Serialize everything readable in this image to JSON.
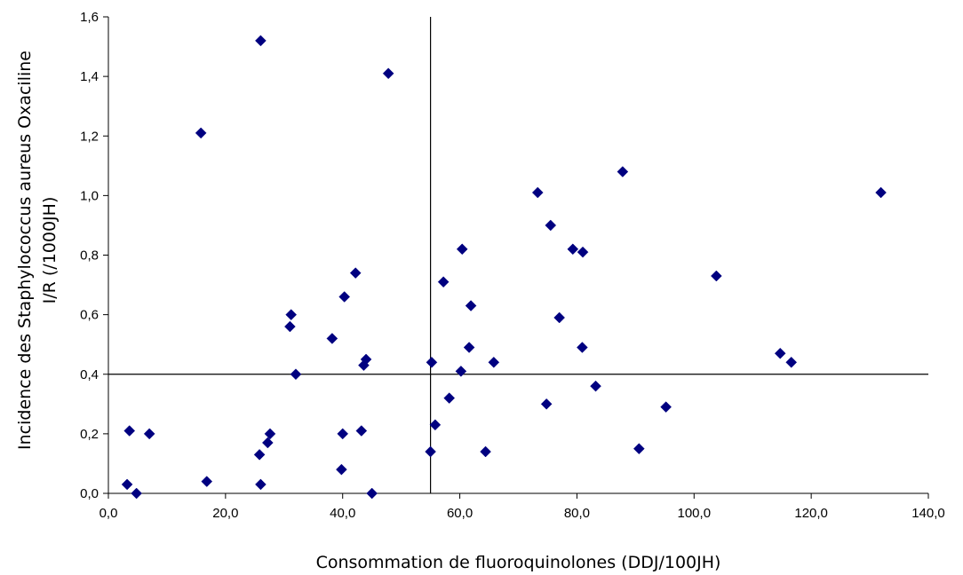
{
  "chart_data": {
    "type": "scatter",
    "title": "",
    "xlabel": "Consommation de fluoroquinolones (DDJ/100JH)",
    "ylabel_line1": "Incidence des Staphylococcus aureus Oxaciline",
    "ylabel_line2": "I/R (/1000JH)",
    "xlim": [
      0,
      140
    ],
    "ylim": [
      0,
      1.6
    ],
    "x_ticks": [
      "0,0",
      "20,0",
      "40,0",
      "60,0",
      "80,0",
      "100,0",
      "120,0",
      "140,0"
    ],
    "y_ticks": [
      "0,0",
      "0,2",
      "0,4",
      "0,6",
      "0,8",
      "1,0",
      "1,2",
      "1,4",
      "1,6"
    ],
    "x_tick_values": [
      0,
      20,
      40,
      60,
      80,
      100,
      120,
      140
    ],
    "y_tick_values": [
      0,
      0.2,
      0.4,
      0.6,
      0.8,
      1.0,
      1.2,
      1.4,
      1.6
    ],
    "reference_lines": {
      "x": 55,
      "y": 0.4
    },
    "marker_color": "#000080",
    "grid": false,
    "legend": "none",
    "points": [
      [
        26,
        1.52
      ],
      [
        47.8,
        1.41
      ],
      [
        15.8,
        1.21
      ],
      [
        3.2,
        0.03
      ],
      [
        3.6,
        0.21
      ],
      [
        4.8,
        0.0
      ],
      [
        7.0,
        0.2
      ],
      [
        16.8,
        0.04
      ],
      [
        25.8,
        0.13
      ],
      [
        26.0,
        0.03
      ],
      [
        27.2,
        0.17
      ],
      [
        27.6,
        0.2
      ],
      [
        31.0,
        0.56
      ],
      [
        31.2,
        0.6
      ],
      [
        32.0,
        0.4
      ],
      [
        38.2,
        0.52
      ],
      [
        39.8,
        0.08
      ],
      [
        40.0,
        0.2
      ],
      [
        40.3,
        0.66
      ],
      [
        42.2,
        0.74
      ],
      [
        43.2,
        0.21
      ],
      [
        43.6,
        0.43
      ],
      [
        44.0,
        0.45
      ],
      [
        45.0,
        0.0
      ],
      [
        55.0,
        0.14
      ],
      [
        55.2,
        0.44
      ],
      [
        55.8,
        0.23
      ],
      [
        57.2,
        0.71
      ],
      [
        58.2,
        0.32
      ],
      [
        60.2,
        0.41
      ],
      [
        60.4,
        0.82
      ],
      [
        61.6,
        0.49
      ],
      [
        61.9,
        0.63
      ],
      [
        64.4,
        0.14
      ],
      [
        65.8,
        0.44
      ],
      [
        73.3,
        1.01
      ],
      [
        74.8,
        0.3
      ],
      [
        75.5,
        0.9
      ],
      [
        77.0,
        0.59
      ],
      [
        79.3,
        0.82
      ],
      [
        80.9,
        0.49
      ],
      [
        81.0,
        0.81
      ],
      [
        83.2,
        0.36
      ],
      [
        87.8,
        1.08
      ],
      [
        90.6,
        0.15
      ],
      [
        95.2,
        0.29
      ],
      [
        103.8,
        0.73
      ],
      [
        114.7,
        0.47
      ],
      [
        116.6,
        0.44
      ],
      [
        131.9,
        1.01
      ]
    ]
  }
}
